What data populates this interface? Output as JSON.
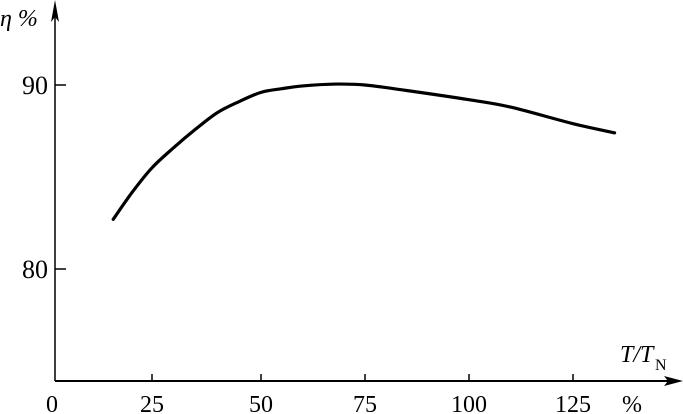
{
  "chart_data": {
    "type": "line",
    "title": "",
    "ylabel": "η %",
    "xlabel": "T/T",
    "xlabel_subscript": "N",
    "x_unit": "%",
    "xlim": [
      0,
      140
    ],
    "ylim": [
      74,
      95
    ],
    "x_ticks": [
      0,
      25,
      50,
      75,
      100,
      125
    ],
    "x_tick_labels": [
      "0",
      "25",
      "50",
      "75",
      "100",
      "125"
    ],
    "y_ticks": [
      80,
      90
    ],
    "y_tick_labels": [
      "80",
      "90"
    ],
    "grid": false,
    "series": [
      {
        "color": "#000000",
        "x": [
          15,
          20,
          25,
          30,
          35,
          40,
          45,
          50,
          55,
          60,
          68,
          75,
          85,
          100,
          110,
          125,
          135
        ],
        "y": [
          82.7,
          84.2,
          85.5,
          86.6,
          87.6,
          88.5,
          89.1,
          89.6,
          89.8,
          89.95,
          90.05,
          90.0,
          89.7,
          89.2,
          88.8,
          87.9,
          87.4
        ]
      }
    ]
  }
}
